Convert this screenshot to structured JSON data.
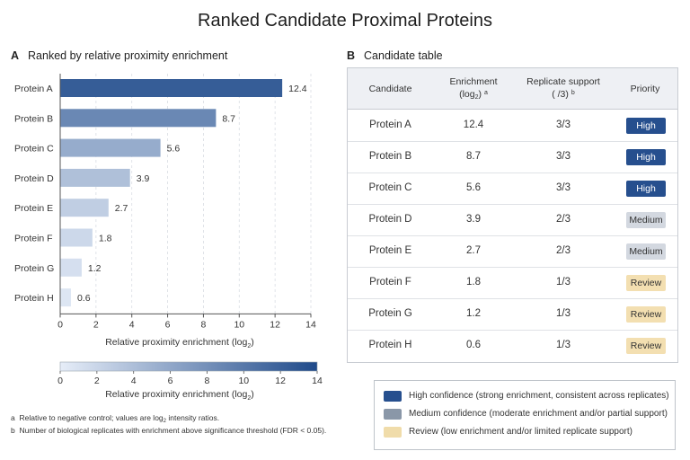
{
  "title": "Ranked Candidate Proximal Proteins",
  "panel_a": {
    "letter": "A",
    "heading": "Ranked by relative proximity enrichment"
  },
  "panel_b": {
    "letter": "B",
    "heading": "Candidate table"
  },
  "chart_data": {
    "type": "bar",
    "orientation": "horizontal",
    "categories": [
      "Protein A",
      "Protein B",
      "Protein C",
      "Protein D",
      "Protein E",
      "Protein F",
      "Protein G",
      "Protein H"
    ],
    "values": [
      12.4,
      8.7,
      5.6,
      3.9,
      2.7,
      1.8,
      1.2,
      0.6
    ],
    "data_labels": [
      "12.4",
      "8.7",
      "5.6",
      "3.9",
      "2.7",
      "1.8",
      "1.2",
      "0.6"
    ],
    "xlabel_main": "Relative proximity enrichment (log",
    "xlabel_sub": "2",
    "xlabel_close": ")",
    "xlim": [
      0,
      14
    ],
    "xticks": [
      0,
      2,
      4,
      6,
      8,
      10,
      12,
      14
    ],
    "color_min": "#e6edf8",
    "color_max": "#1f4a8a",
    "grid": "vertical dashed",
    "colorbar": {
      "range": [
        0,
        14
      ],
      "ticks": [
        0,
        2,
        4,
        6,
        8,
        10,
        12,
        14
      ],
      "label_main": "Relative proximity enrichment (log",
      "label_sub": "2",
      "label_close": ")"
    }
  },
  "table": {
    "headers": {
      "candidate": "Candidate",
      "enrichment_top": "Enrichment",
      "enrichment_unit_open": "(log",
      "enrichment_unit_sub": "2",
      "enrichment_unit_close": ")",
      "enrichment_note": "a",
      "support_top": "Replicate support",
      "support_bottom": "( /3)",
      "support_note": "b",
      "priority": "Priority"
    },
    "rows": [
      {
        "candidate": "Protein A",
        "enrichment": "12.4",
        "support": "3/3",
        "priority": "High"
      },
      {
        "candidate": "Protein B",
        "enrichment": "8.7",
        "support": "3/3",
        "priority": "High"
      },
      {
        "candidate": "Protein C",
        "enrichment": "5.6",
        "support": "3/3",
        "priority": "High"
      },
      {
        "candidate": "Protein D",
        "enrichment": "3.9",
        "support": "2/3",
        "priority": "Medium"
      },
      {
        "candidate": "Protein E",
        "enrichment": "2.7",
        "support": "2/3",
        "priority": "Medium"
      },
      {
        "candidate": "Protein F",
        "enrichment": "1.8",
        "support": "1/3",
        "priority": "Review"
      },
      {
        "candidate": "Protein G",
        "enrichment": "1.2",
        "support": "1/3",
        "priority": "Review"
      },
      {
        "candidate": "Protein H",
        "enrichment": "0.6",
        "support": "1/3",
        "priority": "Review"
      }
    ]
  },
  "priority_styles": {
    "High": {
      "bg": "#264f8e",
      "fg": "#ffffff"
    },
    "Medium": {
      "bg": "#d3d8e0",
      "fg": "#333333"
    },
    "Review": {
      "bg": "#f3dfb1",
      "fg": "#333333"
    }
  },
  "legend": [
    {
      "color": "#264f8e",
      "text": "High confidence (strong enrichment, consistent across replicates)"
    },
    {
      "color": "#8a97a8",
      "text": "Medium confidence (moderate enrichment and/or partial support)"
    },
    {
      "color": "#f0dcaa",
      "text": "Review (low enrichment and/or limited replicate support)"
    }
  ],
  "footnotes": {
    "a_mark": "a",
    "a_text_1": "Relative to negative control; values are log",
    "a_text_sub": "2",
    "a_text_2": " intensity ratios.",
    "b_mark": "b",
    "b_text": "Number of biological replicates with enrichment above significance threshold (FDR < 0.05)."
  }
}
